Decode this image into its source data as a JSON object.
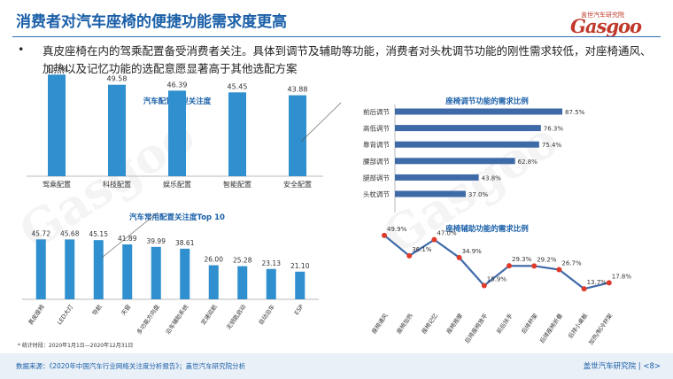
{
  "title": "消费者对汽车座椅的便捷功能需求度更高",
  "logo": {
    "cn": "盖世汽车研究院",
    "en": "Gasgoo"
  },
  "bullet": "•",
  "paragraph": "真皮座椅在内的驾乘配置备受消费者关注。具体到调节及辅助等功能，消费者对头枕调节功能的刚性需求较低，对座椅通风、加热以及记忆功能的选配意愿显著高于其他选配方案",
  "note": "* 统计时段：2020年1月1日—2020年12月31日",
  "source": "数据来源：《2020年中国汽车行业网络关注度分析报告》；盖世汽车研究院分析",
  "page": "盖世汽车研究院  |  <8>",
  "colors": {
    "bar": "#2f8fcf",
    "hbar": "#3f6aa8",
    "line": "#3f6aa8",
    "marker": "#e03b2a"
  },
  "chart_data": [
    {
      "type": "bar",
      "title": "汽车配置类型关注度",
      "categories": [
        "驾乘配置",
        "科技配置",
        "娱乐配置",
        "智能配置",
        "安全配置"
      ],
      "values": [
        55.08,
        49.58,
        46.39,
        45.45,
        43.88
      ],
      "ylim": [
        0,
        60
      ]
    },
    {
      "type": "bar",
      "title": "汽车常用配置关注度Top  10",
      "categories": [
        "真皮座椅",
        "LED大灯",
        "导航",
        "天窗",
        "多功能方向盘",
        "泊车辅助系统",
        "定速巡航",
        "无钥匙启动",
        "自动泊车",
        "ESP"
      ],
      "values": [
        45.72,
        45.68,
        45.15,
        41.89,
        39.99,
        38.61,
        26.0,
        25.28,
        23.13,
        21.1
      ],
      "ylim": [
        0,
        50
      ]
    },
    {
      "type": "bar",
      "orientation": "horizontal",
      "title": "座椅调节功能的需求比例",
      "categories": [
        "前后调节",
        "高低调节",
        "靠背调节",
        "腰部调节",
        "腿部调节",
        "头枕调节"
      ],
      "values": [
        "87.5%",
        "76.3%",
        "75.4%",
        "62.8%",
        "43.8%",
        "37.0%"
      ],
      "xlim": [
        0,
        100
      ]
    },
    {
      "type": "line",
      "title": "座椅辅助功能的需求比例",
      "categories": [
        "座椅通风",
        "座椅加热",
        "座椅记忆",
        "座椅按摩",
        "后排座椅放平",
        "前后扶手",
        "后排杯架",
        "后排座椅折叠",
        "后排小桌板",
        "加热/制冷杯架"
      ],
      "values": [
        "49.9%",
        "36.1%",
        "47.0%",
        "34.9%",
        "15.9%",
        "29.3%",
        "29.2%",
        "26.7%",
        "13.7%",
        "17.8%"
      ],
      "ylim": [
        0,
        60
      ]
    }
  ]
}
